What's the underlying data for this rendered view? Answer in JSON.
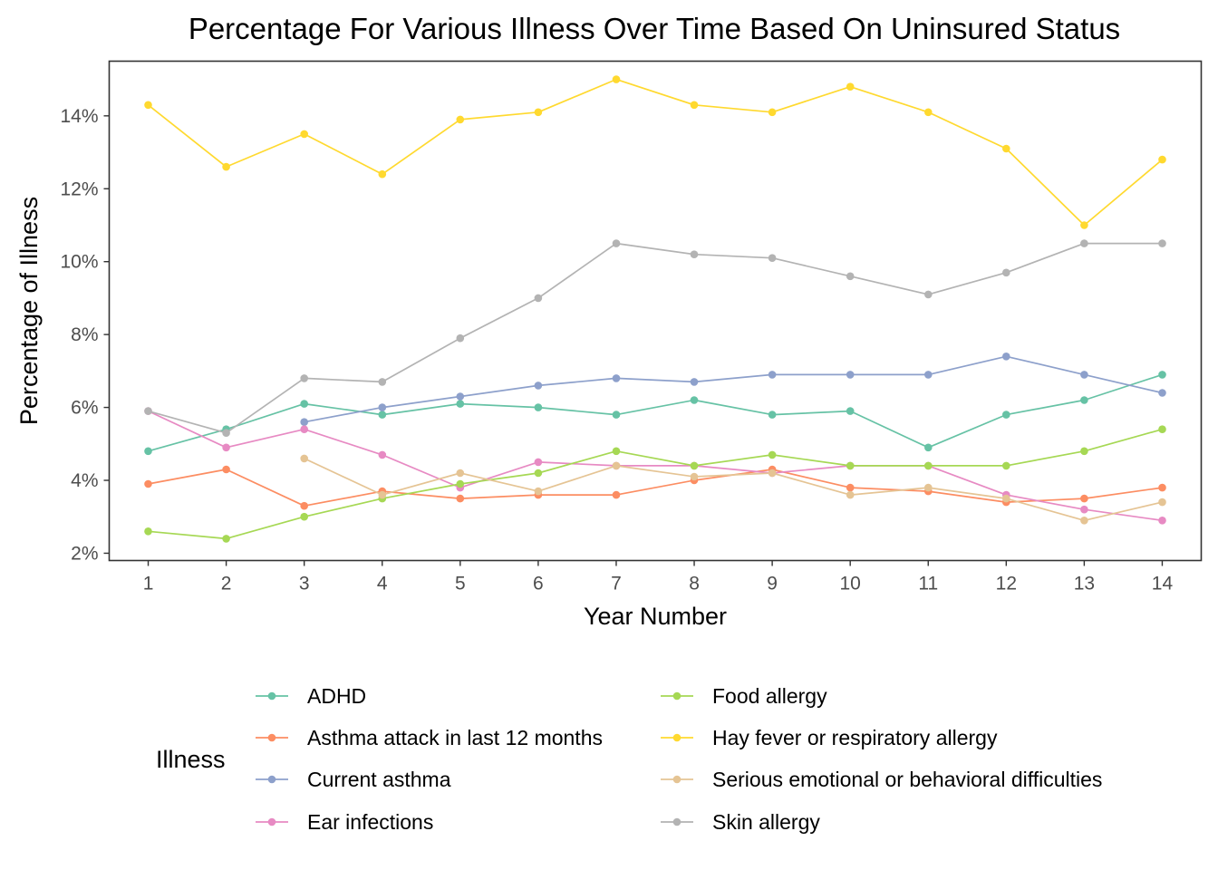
{
  "chart_data": {
    "type": "line",
    "title": "Percentage For Various Illness Over Time Based On Uninsured Status",
    "xlabel": "Year Number",
    "ylabel": "Percentage of Illness",
    "x": [
      1,
      2,
      3,
      4,
      5,
      6,
      7,
      8,
      9,
      10,
      11,
      12,
      13,
      14
    ],
    "xticks": [
      "1",
      "2",
      "3",
      "4",
      "5",
      "6",
      "7",
      "8",
      "9",
      "10",
      "11",
      "12",
      "13",
      "14"
    ],
    "xlim": [
      0.5,
      14.5
    ],
    "ylim": [
      1.8,
      15.5
    ],
    "yticks": [
      2,
      4,
      6,
      8,
      10,
      12,
      14
    ],
    "ytick_labels": [
      "2%",
      "4%",
      "6%",
      "8%",
      "10%",
      "12%",
      "14%"
    ],
    "grid": false,
    "legend_title": "Illness",
    "legend_position": "bottom",
    "series": [
      {
        "name": "ADHD",
        "color": "#66c2a5",
        "values": [
          4.8,
          5.4,
          6.1,
          5.8,
          6.1,
          6.0,
          5.8,
          6.2,
          5.8,
          5.9,
          4.9,
          5.8,
          6.2,
          6.9
        ]
      },
      {
        "name": "Asthma attack in last 12 months",
        "color": "#fc8d62",
        "values": [
          3.9,
          4.3,
          3.3,
          3.7,
          3.5,
          3.6,
          3.6,
          4.0,
          4.3,
          3.8,
          3.7,
          3.4,
          3.5,
          3.8
        ]
      },
      {
        "name": "Current asthma",
        "color": "#8da0cb",
        "values": [
          null,
          null,
          5.6,
          6.0,
          6.3,
          6.6,
          6.8,
          6.7,
          6.9,
          6.9,
          6.9,
          7.4,
          6.9,
          6.4
        ]
      },
      {
        "name": "Ear infections",
        "color": "#e78ac3",
        "values": [
          5.9,
          4.9,
          5.4,
          4.7,
          3.8,
          4.5,
          4.4,
          4.4,
          4.2,
          4.4,
          4.4,
          3.6,
          3.2,
          2.9
        ]
      },
      {
        "name": "Food allergy",
        "color": "#a6d854",
        "values": [
          2.6,
          2.4,
          3.0,
          3.5,
          3.9,
          4.2,
          4.8,
          4.4,
          4.7,
          4.4,
          4.4,
          4.4,
          4.8,
          5.4
        ]
      },
      {
        "name": "Hay fever or respiratory allergy",
        "color": "#ffd92f",
        "values": [
          14.3,
          12.6,
          13.5,
          12.4,
          13.9,
          14.1,
          15.0,
          14.3,
          14.1,
          14.8,
          14.1,
          13.1,
          11.0,
          12.8
        ]
      },
      {
        "name": "Serious emotional or behavioral difficulties",
        "color": "#e5c494",
        "values": [
          null,
          null,
          4.6,
          3.6,
          4.2,
          3.7,
          4.4,
          4.1,
          4.2,
          3.6,
          3.8,
          3.5,
          2.9,
          3.4
        ]
      },
      {
        "name": "Skin allergy",
        "color": "#b3b3b3",
        "values": [
          5.9,
          5.3,
          6.8,
          6.7,
          7.9,
          9.0,
          10.5,
          10.2,
          10.1,
          9.6,
          9.1,
          9.7,
          10.5,
          10.5
        ]
      }
    ]
  }
}
